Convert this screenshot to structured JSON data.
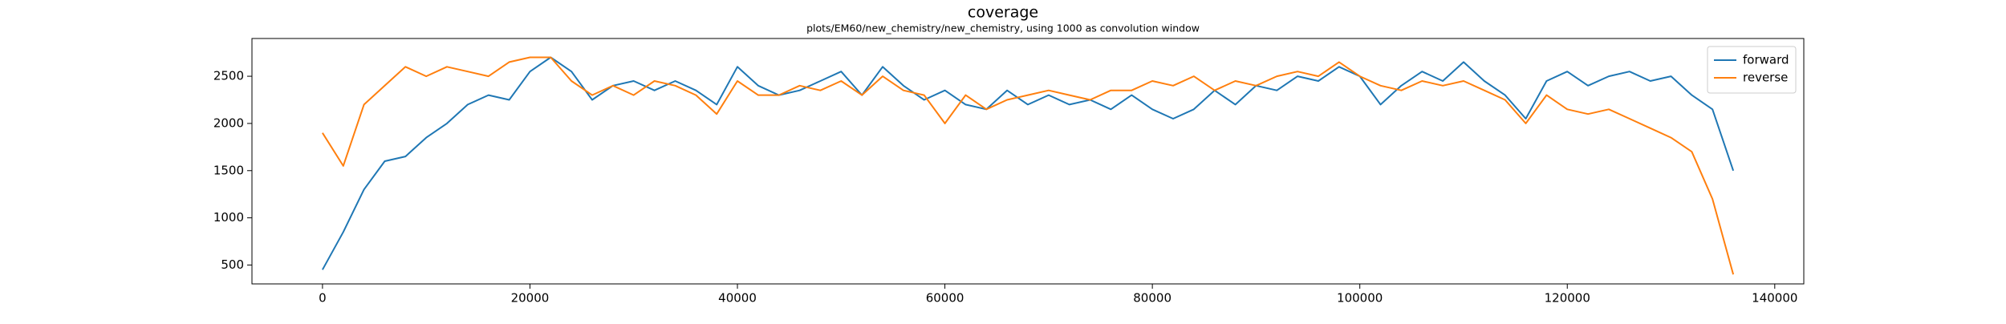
{
  "chart_data": {
    "type": "line",
    "title": "coverage",
    "subtitle": "plots/EM60/new_chemistry/new_chemistry, using 1000 as convolution window",
    "x": [
      0,
      2000,
      4000,
      6000,
      8000,
      10000,
      12000,
      14000,
      16000,
      18000,
      20000,
      22000,
      24000,
      26000,
      28000,
      30000,
      32000,
      34000,
      36000,
      38000,
      40000,
      42000,
      44000,
      46000,
      48000,
      50000,
      52000,
      54000,
      56000,
      58000,
      60000,
      62000,
      64000,
      66000,
      68000,
      70000,
      72000,
      74000,
      76000,
      78000,
      80000,
      82000,
      84000,
      86000,
      88000,
      90000,
      92000,
      94000,
      96000,
      98000,
      100000,
      102000,
      104000,
      106000,
      108000,
      110000,
      112000,
      114000,
      116000,
      118000,
      120000,
      122000,
      124000,
      126000,
      128000,
      130000,
      132000,
      134000,
      136000
    ],
    "series": [
      {
        "name": "forward",
        "color": "#1f77b4",
        "values": [
          450,
          850,
          1300,
          1600,
          1650,
          1850,
          2000,
          2200,
          2300,
          2250,
          2550,
          2700,
          2550,
          2250,
          2400,
          2450,
          2350,
          2450,
          2350,
          2200,
          2600,
          2400,
          2300,
          2350,
          2450,
          2550,
          2300,
          2600,
          2400,
          2250,
          2350,
          2200,
          2150,
          2350,
          2200,
          2300,
          2200,
          2250,
          2150,
          2300,
          2150,
          2050,
          2150,
          2350,
          2200,
          2400,
          2350,
          2500,
          2450,
          2600,
          2500,
          2200,
          2400,
          2550,
          2450,
          2650,
          2450,
          2300,
          2050,
          2450,
          2550,
          2400,
          2500,
          2550,
          2450,
          2500,
          2300,
          2150,
          1500
        ]
      },
      {
        "name": "reverse",
        "color": "#ff7f0e",
        "values": [
          1900,
          1550,
          2200,
          2400,
          2600,
          2500,
          2600,
          2550,
          2500,
          2650,
          2700,
          2700,
          2450,
          2300,
          2400,
          2300,
          2450,
          2400,
          2300,
          2100,
          2450,
          2300,
          2300,
          2400,
          2350,
          2450,
          2300,
          2500,
          2350,
          2300,
          2000,
          2300,
          2150,
          2250,
          2300,
          2350,
          2300,
          2250,
          2350,
          2350,
          2450,
          2400,
          2500,
          2350,
          2450,
          2400,
          2500,
          2550,
          2500,
          2650,
          2500,
          2400,
          2350,
          2450,
          2400,
          2450,
          2350,
          2250,
          2000,
          2300,
          2150,
          2100,
          2150,
          2050,
          1950,
          1850,
          1700,
          1200,
          400
        ]
      }
    ],
    "xlim": [
      -6800,
      142800
    ],
    "ylim": [
      300,
      2900
    ],
    "xticks": [
      0,
      20000,
      40000,
      60000,
      80000,
      100000,
      120000,
      140000
    ],
    "yticks": [
      500,
      1000,
      1500,
      2000,
      2500
    ],
    "legend": "upper right"
  }
}
